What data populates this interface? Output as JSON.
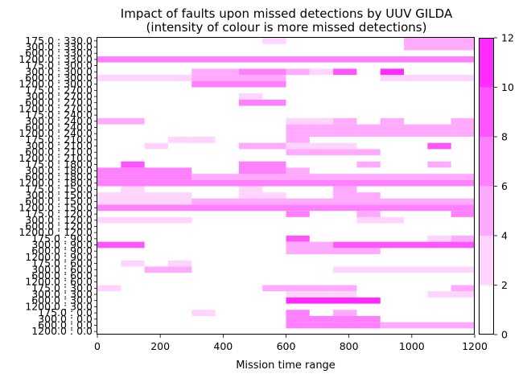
{
  "chart_data": {
    "type": "heatmap",
    "title": "Impact of faults upon missed detections by UUV GILDA",
    "subtitle": "(intensity of colour is more missed detections)",
    "xlabel": "Mission time range",
    "ylabel": "",
    "xlim": [
      0,
      1200
    ],
    "x_ticks": [
      0,
      200,
      400,
      600,
      800,
      1000,
      1200
    ],
    "fault_times": [
      330,
      300,
      270,
      240,
      210,
      180,
      150,
      120,
      90,
      60,
      30,
      0
    ],
    "rows_per_group": [
      "175.0",
      "300.0",
      "600.0",
      "1200.0"
    ],
    "bins": [
      0,
      75,
      150,
      225,
      300,
      375,
      450,
      525,
      600,
      675,
      750,
      825,
      900,
      975,
      1050,
      1125,
      1200
    ],
    "colorbar": {
      "min": 0,
      "max": 12,
      "ticks": [
        0,
        2,
        4,
        6,
        8,
        10,
        12
      ],
      "levels": [
        "#ffffff",
        "#ffd4ff",
        "#ffaaff",
        "#ff80ff",
        "#ff55ff",
        "#ff2bff"
      ]
    },
    "cells": [
      [
        0,
        0,
        0,
        0,
        3
      ],
      [
        0,
        0,
        7,
        8,
        3
      ],
      [
        0,
        0,
        13,
        16,
        5
      ],
      [
        0,
        1,
        13,
        16,
        5
      ],
      [
        0,
        3,
        0,
        16,
        7
      ],
      [
        1,
        0,
        0,
        16,
        0
      ],
      [
        1,
        1,
        4,
        6,
        5
      ],
      [
        1,
        1,
        6,
        8,
        6
      ],
      [
        1,
        1,
        8,
        9,
        5
      ],
      [
        1,
        1,
        9,
        10,
        3
      ],
      [
        1,
        1,
        10,
        11,
        9
      ],
      [
        1,
        1,
        12,
        13,
        11
      ],
      [
        1,
        2,
        0,
        4,
        3
      ],
      [
        1,
        2,
        4,
        8,
        5
      ],
      [
        1,
        2,
        12,
        16,
        3
      ],
      [
        1,
        3,
        4,
        8,
        7
      ],
      [
        2,
        1,
        6,
        7,
        3
      ],
      [
        2,
        2,
        6,
        8,
        7
      ],
      [
        3,
        0,
        3,
        4,
        1
      ],
      [
        3,
        1,
        0,
        2,
        5
      ],
      [
        3,
        1,
        8,
        10,
        3
      ],
      [
        3,
        1,
        10,
        11,
        5
      ],
      [
        3,
        1,
        12,
        13,
        5
      ],
      [
        3,
        1,
        15,
        16,
        5
      ],
      [
        3,
        2,
        8,
        10,
        5
      ],
      [
        3,
        2,
        10,
        16,
        5
      ],
      [
        3,
        3,
        8,
        10,
        5
      ],
      [
        3,
        3,
        10,
        16,
        5
      ],
      [
        4,
        0,
        3,
        4,
        3
      ],
      [
        4,
        0,
        4,
        5,
        3
      ],
      [
        4,
        0,
        8,
        9,
        5
      ],
      [
        4,
        1,
        2,
        3,
        3
      ],
      [
        4,
        1,
        6,
        8,
        5
      ],
      [
        4,
        1,
        8,
        11,
        3
      ],
      [
        4,
        1,
        14,
        15,
        9
      ],
      [
        4,
        2,
        8,
        12,
        5
      ],
      [
        5,
        0,
        1,
        2,
        9
      ],
      [
        5,
        0,
        6,
        8,
        7
      ],
      [
        5,
        0,
        11,
        12,
        5
      ],
      [
        5,
        0,
        14,
        15,
        5
      ],
      [
        5,
        1,
        0,
        4,
        7
      ],
      [
        5,
        1,
        6,
        8,
        7
      ],
      [
        5,
        1,
        8,
        9,
        5
      ],
      [
        5,
        2,
        0,
        4,
        7
      ],
      [
        5,
        2,
        4,
        8,
        5
      ],
      [
        5,
        2,
        8,
        16,
        5
      ],
      [
        5,
        3,
        0,
        16,
        7
      ],
      [
        6,
        0,
        1,
        2,
        3
      ],
      [
        6,
        0,
        6,
        7,
        3
      ],
      [
        6,
        0,
        10,
        11,
        5
      ],
      [
        6,
        1,
        0,
        4,
        3
      ],
      [
        6,
        1,
        6,
        8,
        3
      ],
      [
        6,
        1,
        10,
        12,
        5
      ],
      [
        6,
        2,
        0,
        4,
        3
      ],
      [
        6,
        2,
        4,
        8,
        5
      ],
      [
        6,
        2,
        8,
        16,
        5
      ],
      [
        6,
        3,
        0,
        16,
        7
      ],
      [
        7,
        0,
        8,
        9,
        7
      ],
      [
        7,
        0,
        10,
        11,
        1
      ],
      [
        7,
        0,
        11,
        12,
        5
      ],
      [
        7,
        0,
        15,
        16,
        7
      ],
      [
        7,
        1,
        0,
        4,
        3
      ],
      [
        7,
        1,
        11,
        13,
        3
      ],
      [
        8,
        0,
        8,
        9,
        9
      ],
      [
        8,
        0,
        14,
        15,
        3
      ],
      [
        8,
        0,
        15,
        16,
        5
      ],
      [
        8,
        1,
        0,
        2,
        9
      ],
      [
        8,
        1,
        8,
        10,
        5
      ],
      [
        8,
        1,
        10,
        16,
        9
      ],
      [
        8,
        2,
        8,
        12,
        5
      ],
      [
        9,
        0,
        1,
        2,
        3
      ],
      [
        9,
        0,
        3,
        4,
        3
      ],
      [
        9,
        0,
        8,
        9,
        1
      ],
      [
        9,
        1,
        2,
        4,
        5
      ],
      [
        9,
        1,
        10,
        16,
        3
      ],
      [
        10,
        0,
        0,
        1,
        3
      ],
      [
        10,
        0,
        7,
        8,
        5
      ],
      [
        10,
        0,
        8,
        10,
        5
      ],
      [
        10,
        0,
        10,
        11,
        5
      ],
      [
        10,
        0,
        15,
        16,
        5
      ],
      [
        10,
        1,
        8,
        11,
        3
      ],
      [
        10,
        1,
        14,
        16,
        3
      ],
      [
        10,
        2,
        8,
        12,
        11
      ],
      [
        11,
        0,
        4,
        5,
        3
      ],
      [
        11,
        0,
        8,
        9,
        7
      ],
      [
        11,
        0,
        10,
        11,
        5
      ],
      [
        11,
        1,
        8,
        10,
        7
      ],
      [
        11,
        1,
        10,
        12,
        7
      ],
      [
        11,
        2,
        8,
        12,
        7
      ],
      [
        11,
        2,
        12,
        16,
        5
      ]
    ]
  }
}
